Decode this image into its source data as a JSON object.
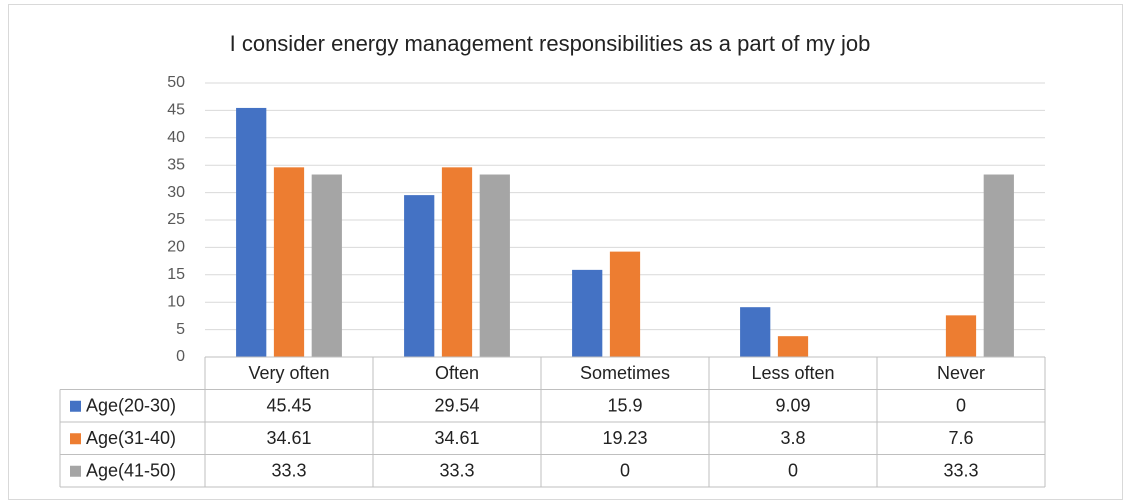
{
  "chart_data": {
    "type": "bar",
    "title": "I consider energy management responsibilities  as a part of my job",
    "categories": [
      "Very often",
      "Often",
      "Sometimes",
      "Less often",
      "Never"
    ],
    "series": [
      {
        "name": "Age(20-30)",
        "color": "#4472c4",
        "values": [
          45.45,
          29.54,
          15.9,
          9.09,
          0
        ]
      },
      {
        "name": "Age(31-40)",
        "color": "#ed7d31",
        "values": [
          34.61,
          34.61,
          19.23,
          3.8,
          7.6
        ]
      },
      {
        "name": "Age(41-50)",
        "color": "#a5a5a5",
        "values": [
          33.3,
          33.3,
          0,
          0,
          33.3
        ]
      }
    ],
    "ylim": [
      0,
      50
    ],
    "yticks": [
      0,
      5,
      10,
      15,
      20,
      25,
      30,
      35,
      40,
      45,
      50
    ],
    "grid": true,
    "data_table": true
  }
}
